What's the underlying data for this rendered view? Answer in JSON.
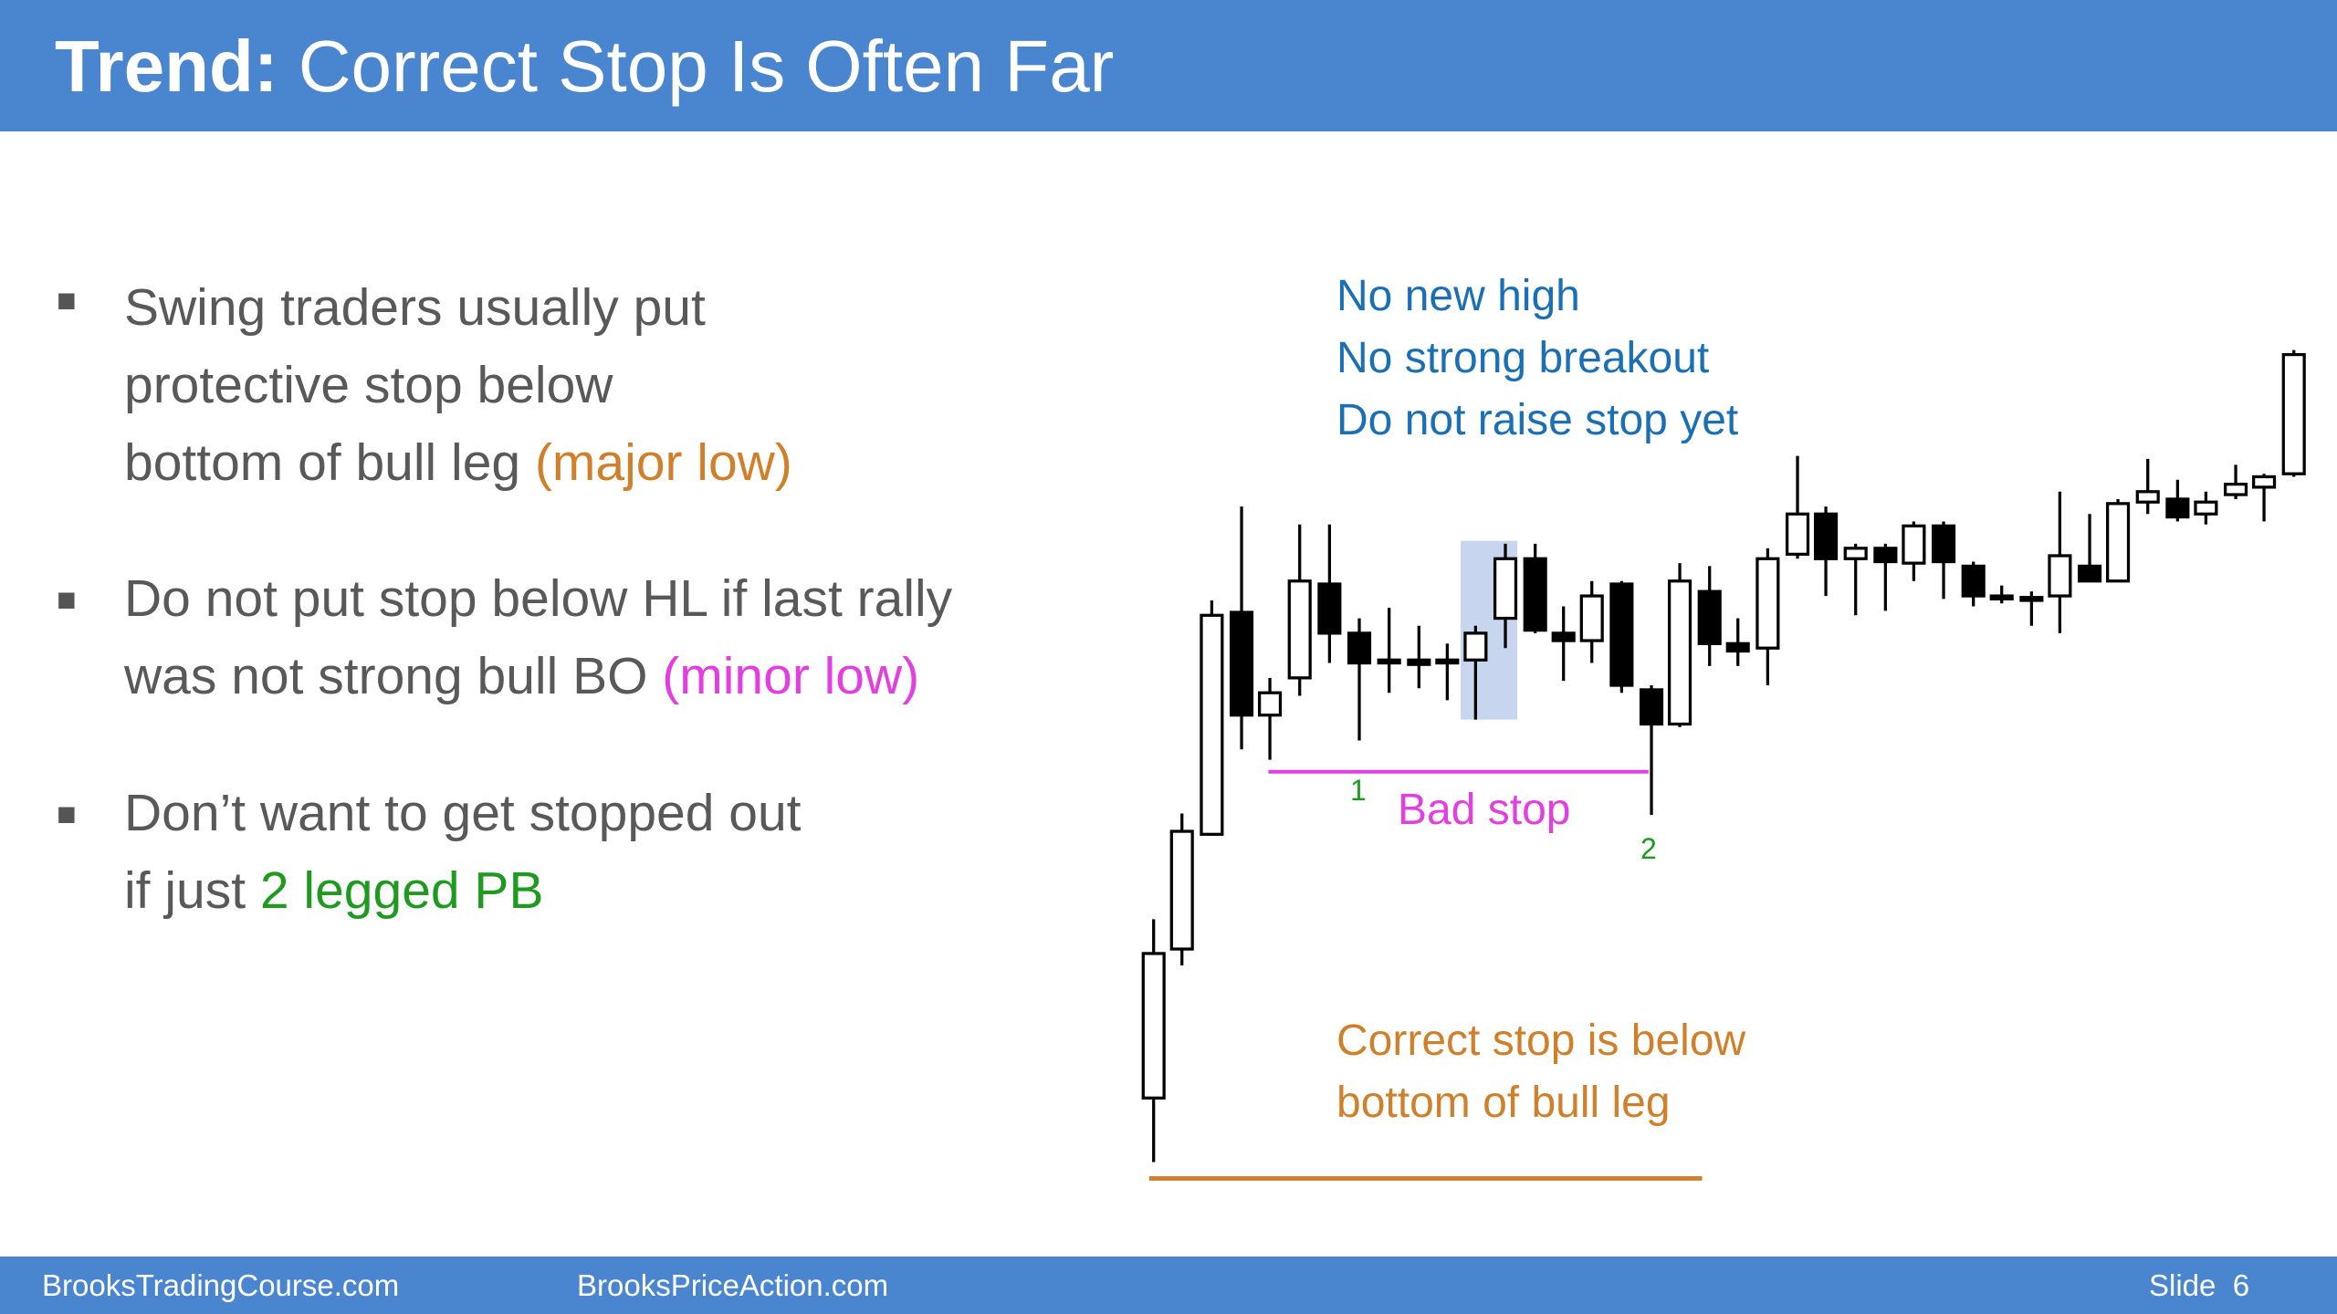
{
  "header": {
    "title_bold": "Trend:",
    "title": "Correct Stop Is Often Far"
  },
  "bullets": [
    {
      "lines": [
        "Swing traders usually put",
        "protective stop below",
        "bottom of bull leg"
      ],
      "highlight": "(major low)"
    },
    {
      "lines": [
        "Do not put stop below HL if last rally",
        "was not strong bull BO"
      ],
      "highlight": "(minor low)"
    },
    {
      "lines": [
        "Don’t want to get stopped out",
        "if just"
      ],
      "highlight": "2 legged PB"
    }
  ],
  "annotations": {
    "note_lines": [
      "No new high",
      "No strong breakout",
      "Do not raise stop yet"
    ],
    "bad_stop": "Bad stop",
    "leg_1": "1",
    "leg_2": "2",
    "correct_lines": [
      "Correct stop is below",
      "bottom of bull leg"
    ]
  },
  "footer": {
    "left": "BrooksTradingCourse.com",
    "middle": "BrooksPriceAction.com",
    "slide": "Slide  6"
  }
}
